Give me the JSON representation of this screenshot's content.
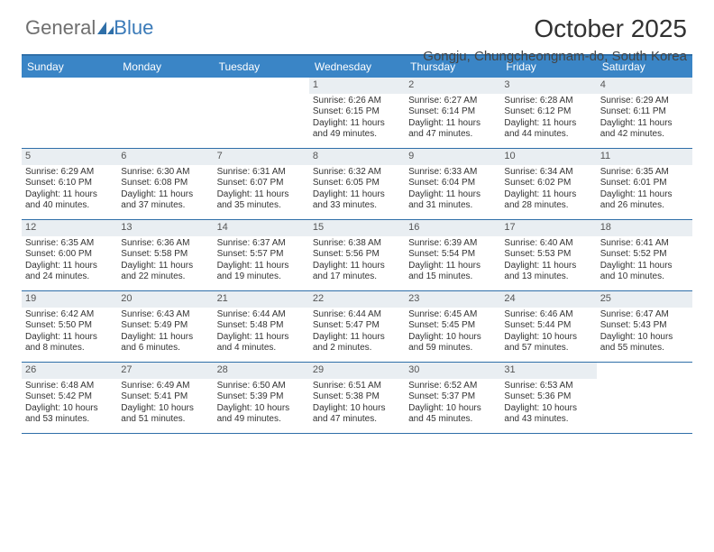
{
  "brand": {
    "part1": "General",
    "part2": "Blue"
  },
  "title": "October 2025",
  "location": "Gongju, Chungcheongnam-do, South Korea",
  "colors": {
    "header_bg": "#3a85c6",
    "border": "#2f6fa8",
    "daynum_bg": "#e9eef2",
    "text": "#333333",
    "brand_gray": "#6f6f6f",
    "brand_blue": "#3a7ab8"
  },
  "days_of_week": [
    "Sunday",
    "Monday",
    "Tuesday",
    "Wednesday",
    "Thursday",
    "Friday",
    "Saturday"
  ],
  "weeks": [
    [
      {
        "empty": true
      },
      {
        "empty": true
      },
      {
        "empty": true
      },
      {
        "n": "1",
        "sr": "Sunrise: 6:26 AM",
        "ss": "Sunset: 6:15 PM",
        "d1": "Daylight: 11 hours",
        "d2": "and 49 minutes."
      },
      {
        "n": "2",
        "sr": "Sunrise: 6:27 AM",
        "ss": "Sunset: 6:14 PM",
        "d1": "Daylight: 11 hours",
        "d2": "and 47 minutes."
      },
      {
        "n": "3",
        "sr": "Sunrise: 6:28 AM",
        "ss": "Sunset: 6:12 PM",
        "d1": "Daylight: 11 hours",
        "d2": "and 44 minutes."
      },
      {
        "n": "4",
        "sr": "Sunrise: 6:29 AM",
        "ss": "Sunset: 6:11 PM",
        "d1": "Daylight: 11 hours",
        "d2": "and 42 minutes."
      }
    ],
    [
      {
        "n": "5",
        "sr": "Sunrise: 6:29 AM",
        "ss": "Sunset: 6:10 PM",
        "d1": "Daylight: 11 hours",
        "d2": "and 40 minutes."
      },
      {
        "n": "6",
        "sr": "Sunrise: 6:30 AM",
        "ss": "Sunset: 6:08 PM",
        "d1": "Daylight: 11 hours",
        "d2": "and 37 minutes."
      },
      {
        "n": "7",
        "sr": "Sunrise: 6:31 AM",
        "ss": "Sunset: 6:07 PM",
        "d1": "Daylight: 11 hours",
        "d2": "and 35 minutes."
      },
      {
        "n": "8",
        "sr": "Sunrise: 6:32 AM",
        "ss": "Sunset: 6:05 PM",
        "d1": "Daylight: 11 hours",
        "d2": "and 33 minutes."
      },
      {
        "n": "9",
        "sr": "Sunrise: 6:33 AM",
        "ss": "Sunset: 6:04 PM",
        "d1": "Daylight: 11 hours",
        "d2": "and 31 minutes."
      },
      {
        "n": "10",
        "sr": "Sunrise: 6:34 AM",
        "ss": "Sunset: 6:02 PM",
        "d1": "Daylight: 11 hours",
        "d2": "and 28 minutes."
      },
      {
        "n": "11",
        "sr": "Sunrise: 6:35 AM",
        "ss": "Sunset: 6:01 PM",
        "d1": "Daylight: 11 hours",
        "d2": "and 26 minutes."
      }
    ],
    [
      {
        "n": "12",
        "sr": "Sunrise: 6:35 AM",
        "ss": "Sunset: 6:00 PM",
        "d1": "Daylight: 11 hours",
        "d2": "and 24 minutes."
      },
      {
        "n": "13",
        "sr": "Sunrise: 6:36 AM",
        "ss": "Sunset: 5:58 PM",
        "d1": "Daylight: 11 hours",
        "d2": "and 22 minutes."
      },
      {
        "n": "14",
        "sr": "Sunrise: 6:37 AM",
        "ss": "Sunset: 5:57 PM",
        "d1": "Daylight: 11 hours",
        "d2": "and 19 minutes."
      },
      {
        "n": "15",
        "sr": "Sunrise: 6:38 AM",
        "ss": "Sunset: 5:56 PM",
        "d1": "Daylight: 11 hours",
        "d2": "and 17 minutes."
      },
      {
        "n": "16",
        "sr": "Sunrise: 6:39 AM",
        "ss": "Sunset: 5:54 PM",
        "d1": "Daylight: 11 hours",
        "d2": "and 15 minutes."
      },
      {
        "n": "17",
        "sr": "Sunrise: 6:40 AM",
        "ss": "Sunset: 5:53 PM",
        "d1": "Daylight: 11 hours",
        "d2": "and 13 minutes."
      },
      {
        "n": "18",
        "sr": "Sunrise: 6:41 AM",
        "ss": "Sunset: 5:52 PM",
        "d1": "Daylight: 11 hours",
        "d2": "and 10 minutes."
      }
    ],
    [
      {
        "n": "19",
        "sr": "Sunrise: 6:42 AM",
        "ss": "Sunset: 5:50 PM",
        "d1": "Daylight: 11 hours",
        "d2": "and 8 minutes."
      },
      {
        "n": "20",
        "sr": "Sunrise: 6:43 AM",
        "ss": "Sunset: 5:49 PM",
        "d1": "Daylight: 11 hours",
        "d2": "and 6 minutes."
      },
      {
        "n": "21",
        "sr": "Sunrise: 6:44 AM",
        "ss": "Sunset: 5:48 PM",
        "d1": "Daylight: 11 hours",
        "d2": "and 4 minutes."
      },
      {
        "n": "22",
        "sr": "Sunrise: 6:44 AM",
        "ss": "Sunset: 5:47 PM",
        "d1": "Daylight: 11 hours",
        "d2": "and 2 minutes."
      },
      {
        "n": "23",
        "sr": "Sunrise: 6:45 AM",
        "ss": "Sunset: 5:45 PM",
        "d1": "Daylight: 10 hours",
        "d2": "and 59 minutes."
      },
      {
        "n": "24",
        "sr": "Sunrise: 6:46 AM",
        "ss": "Sunset: 5:44 PM",
        "d1": "Daylight: 10 hours",
        "d2": "and 57 minutes."
      },
      {
        "n": "25",
        "sr": "Sunrise: 6:47 AM",
        "ss": "Sunset: 5:43 PM",
        "d1": "Daylight: 10 hours",
        "d2": "and 55 minutes."
      }
    ],
    [
      {
        "n": "26",
        "sr": "Sunrise: 6:48 AM",
        "ss": "Sunset: 5:42 PM",
        "d1": "Daylight: 10 hours",
        "d2": "and 53 minutes."
      },
      {
        "n": "27",
        "sr": "Sunrise: 6:49 AM",
        "ss": "Sunset: 5:41 PM",
        "d1": "Daylight: 10 hours",
        "d2": "and 51 minutes."
      },
      {
        "n": "28",
        "sr": "Sunrise: 6:50 AM",
        "ss": "Sunset: 5:39 PM",
        "d1": "Daylight: 10 hours",
        "d2": "and 49 minutes."
      },
      {
        "n": "29",
        "sr": "Sunrise: 6:51 AM",
        "ss": "Sunset: 5:38 PM",
        "d1": "Daylight: 10 hours",
        "d2": "and 47 minutes."
      },
      {
        "n": "30",
        "sr": "Sunrise: 6:52 AM",
        "ss": "Sunset: 5:37 PM",
        "d1": "Daylight: 10 hours",
        "d2": "and 45 minutes."
      },
      {
        "n": "31",
        "sr": "Sunrise: 6:53 AM",
        "ss": "Sunset: 5:36 PM",
        "d1": "Daylight: 10 hours",
        "d2": "and 43 minutes."
      },
      {
        "empty": true
      }
    ]
  ]
}
